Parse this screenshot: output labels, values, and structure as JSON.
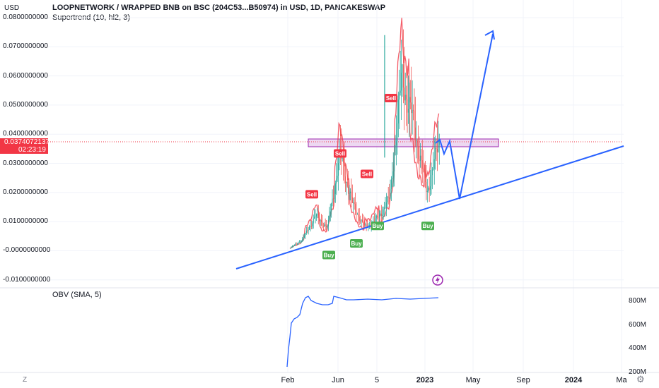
{
  "header": {
    "title": "LOOPNETWORK / WRAPPED BNB on BSC (204C53...B50974) in USD, 1D, PANCAKESWAP",
    "indicator": "Supertrend (10, hl2, 3)",
    "currency": "USD"
  },
  "current_price": {
    "value": "0.0374072137",
    "countdown": "02:23:19"
  },
  "obv": {
    "title": "OBV (SMA, 5)"
  },
  "bottom": {
    "tz": "Z",
    "gear": "⚙"
  },
  "colors": {
    "up": "#26a69a",
    "down": "#ef5350",
    "supertrend_up": "#4caf50",
    "supertrend_down": "#f23645",
    "drawing": "#2962ff",
    "zone": "#e1bee7",
    "obv": "#2962ff"
  },
  "chart_data": [
    {
      "type": "line",
      "title": "LOOPNETWORK / WRAPPED BNB on BSC (204C53...B50974) in USD, 1D, PANCAKESWAP",
      "subtitle": "Supertrend (10, hl2, 3)",
      "ylabel": "USD",
      "yticks": [
        "0.0800000000",
        "0.0700000000",
        "0.0600000000",
        "0.0500000000",
        "0.0400000000",
        "0.0300000000",
        "0.0200000000",
        "0.0100000000",
        "-0.0000000000",
        "-0.0100000000"
      ],
      "ylim": [
        -0.011,
        0.083
      ],
      "xticks": [
        "Feb",
        "Jun",
        "5",
        "2023",
        "May",
        "Sep",
        "2024",
        "Ma"
      ],
      "grid": true,
      "close_series": [
        [
          "Feb",
          0.001
        ],
        [
          "Mar",
          0.004
        ],
        [
          "Apr",
          0.012
        ],
        [
          "May",
          0.008
        ],
        [
          "Jun",
          0.033
        ],
        [
          "Jul",
          0.016
        ],
        [
          "Aug",
          0.008
        ],
        [
          "Sep",
          0.011
        ],
        [
          "Oct",
          0.018
        ],
        [
          "Nov",
          0.06
        ],
        [
          "Dec",
          0.042
        ],
        [
          "Jan",
          0.02
        ],
        [
          "Feb",
          0.037
        ]
      ],
      "signals": [
        {
          "label": "Sell",
          "x": "Apr",
          "y": 0.017
        },
        {
          "label": "Buy",
          "x": "May",
          "y": 0.001
        },
        {
          "label": "Sell",
          "x": "Jun",
          "y": 0.031
        },
        {
          "label": "Buy",
          "x": "Aug",
          "y": 0.005
        },
        {
          "label": "Sell",
          "x": "Sep",
          "y": 0.024
        },
        {
          "label": "Buy",
          "x": "Oct",
          "y": 0.011
        },
        {
          "label": "Sell",
          "x": "Nov",
          "y": 0.05
        },
        {
          "label": "Buy",
          "x": "Jan",
          "y": 0.011
        }
      ],
      "resistance_zone": [
        0.0355,
        0.0385
      ]
    },
    {
      "type": "line",
      "title": "OBV (SMA, 5)",
      "yticks": [
        "800M",
        "600M",
        "400M",
        "200M"
      ],
      "ylim": [
        190,
        860
      ]
    }
  ]
}
